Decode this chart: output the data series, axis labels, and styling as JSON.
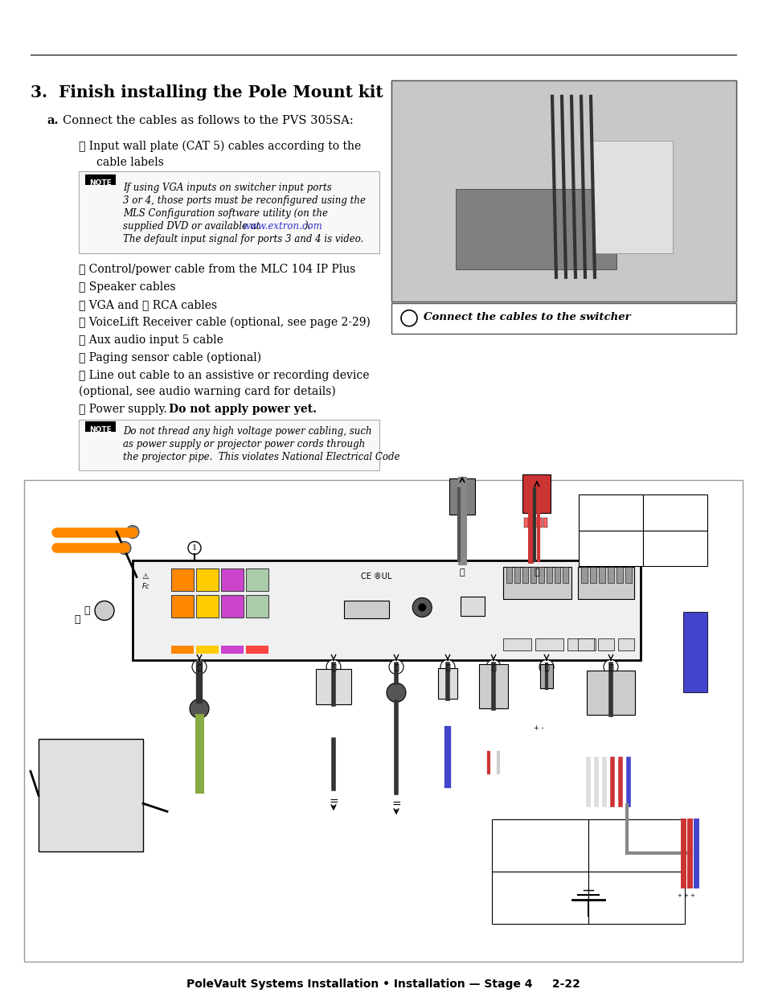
{
  "page_bg": "#ffffff",
  "footer_text": "PoleVault Systems Installation • Installation — Stage 4     2-22",
  "title": "3.  Finish installing the Pole Mount kit",
  "sec_a": "Connect the cables as follows to the PVS 305SA:",
  "item1": "① Input wall plate (CAT 5) cables according to the",
  "item1b": "cable labels",
  "note1_line1": "If using VGA inputs on switcher input ports",
  "note1_line2": "3 or 4, those ports must be reconfigured using the",
  "note1_line3": "MLS Configuration software utility (on the",
  "note1_line4": "supplied DVD or available at www.extron.com).",
  "note1_line5": "The default input signal for ports 3 and 4 is video.",
  "item2": "② Control/power cable from the MLC 104 IP Plus",
  "item3": "③ Speaker cables",
  "item4": "④ VGA and ⑤ RCA cables",
  "item5": "⑥ VoiceLift Receiver cable (optional, see page 2-29)",
  "item6": "⑦ Aux audio input 5 cable",
  "item7": "⑧ Paging sensor cable (optional)",
  "item8a": "⑨ Line out cable to an assistive or recording device",
  "item8b": "(optional, see audio warning card for details)",
  "item9a": "⑩ Power supply.  ",
  "item9b": "Do not apply power yet.",
  "note2_line1": "Do not thread any high voltage power cabling, such",
  "note2_line2": "as power supply or projector power cords through",
  "note2_line3": "the projector pipe.  This violates National Electrical Code",
  "caption": "Connect the cables to the switcher",
  "link_color": "#3333cc"
}
